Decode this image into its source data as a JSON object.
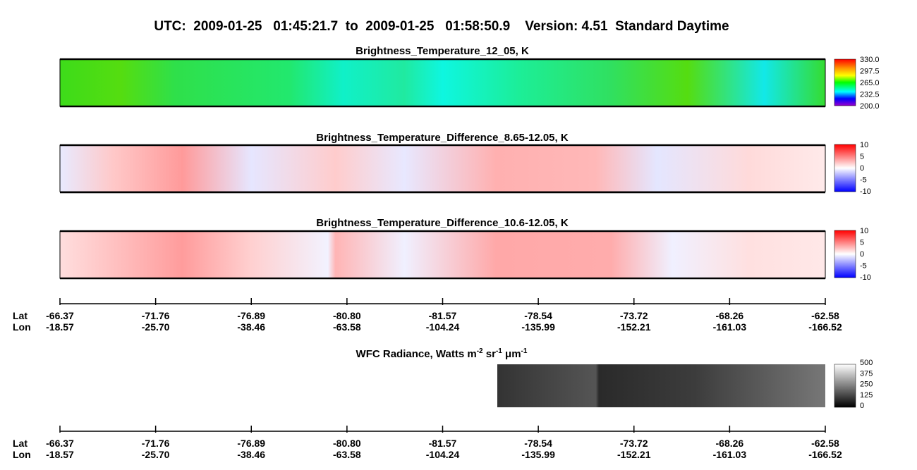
{
  "header": {
    "title": "UTC:  2009-01-25   01:45:21.7  to  2009-01-25   01:58:50.9    Version: 4.51  Standard Daytime"
  },
  "panels": [
    {
      "title": "Brightness_Temperature_12_05, K",
      "colorbar_ticks": [
        "330.0",
        "297.5",
        "265.0",
        "232.5",
        "200.0"
      ]
    },
    {
      "title": "Brightness_Temperature_Difference_8.65-12.05, K",
      "colorbar_ticks": [
        "10",
        "5",
        "0",
        "-5",
        "-10"
      ]
    },
    {
      "title": "Brightness_Temperature_Difference_10.6-12.05, K",
      "colorbar_ticks": [
        "10",
        "5",
        "0",
        "-5",
        "-10"
      ]
    }
  ],
  "wfc": {
    "title_parts": [
      "WFC Radiance, Watts m",
      "-2",
      " sr",
      "-1",
      " μm",
      "-1"
    ],
    "colorbar_ticks": [
      "500",
      "375",
      "250",
      "125",
      "0"
    ]
  },
  "axes": [
    {
      "lat_label": "Lat",
      "lon_label": "Lon",
      "lat": [
        "-66.37",
        "-71.76",
        "-76.89",
        "-80.80",
        "-81.57",
        "-78.54",
        "-73.72",
        "-68.26",
        "-62.58"
      ],
      "lon": [
        "-18.57",
        "-25.70",
        "-38.46",
        "-63.58",
        "-104.24",
        "-135.99",
        "-152.21",
        "-161.03",
        "-166.52"
      ]
    },
    {
      "lat_label": "Lat",
      "lon_label": "Lon",
      "lat": [
        "-66.37",
        "-71.76",
        "-76.89",
        "-80.80",
        "-81.57",
        "-78.54",
        "-73.72",
        "-68.26",
        "-62.58"
      ],
      "lon": [
        "-18.57",
        "-25.70",
        "-38.46",
        "-63.58",
        "-104.24",
        "-135.99",
        "-152.21",
        "-161.03",
        "-166.52"
      ]
    }
  ]
}
